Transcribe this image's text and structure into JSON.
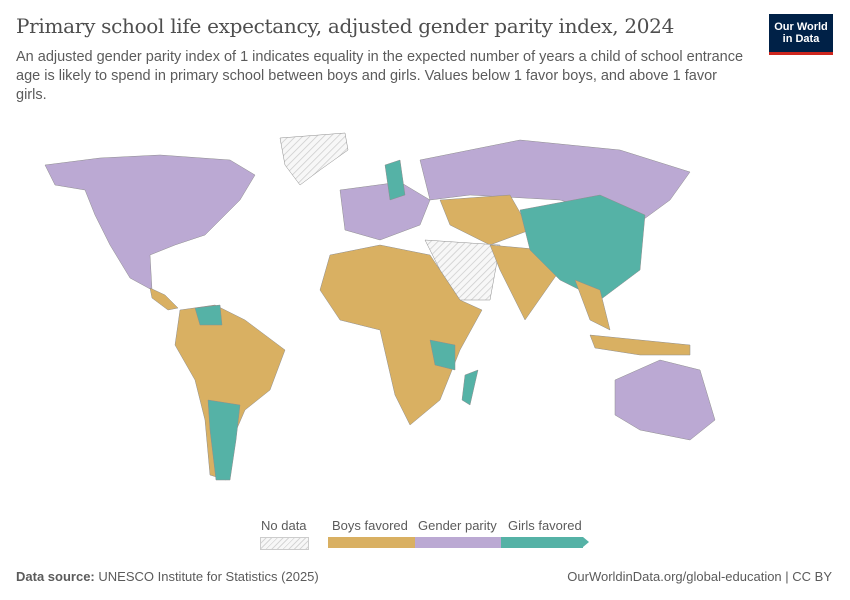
{
  "title": "Primary school life expectancy, adjusted gender parity index, 2024",
  "subtitle": "An adjusted gender parity index of 1 indicates equality in the expected number of years a child of school entrance age is likely to spend in primary school between boys and girls. Values below 1 favor boys, and above 1 favor girls.",
  "logo": "Our World in Data",
  "legend": {
    "no_data": "No data",
    "categories": [
      {
        "label": "Boys favored",
        "color": "#d9b062"
      },
      {
        "label": "Gender parity",
        "color": "#bba9d3"
      },
      {
        "label": "Girls favored",
        "color": "#55b2a6"
      }
    ]
  },
  "colors": {
    "no_data": "#eeeeee",
    "border": "#8e8e8e"
  },
  "footer": {
    "source_label": "Data source:",
    "source": "UNESCO Institute for Statistics (2025)",
    "link": "OurWorldinData.org/global-education | CC BY"
  }
}
